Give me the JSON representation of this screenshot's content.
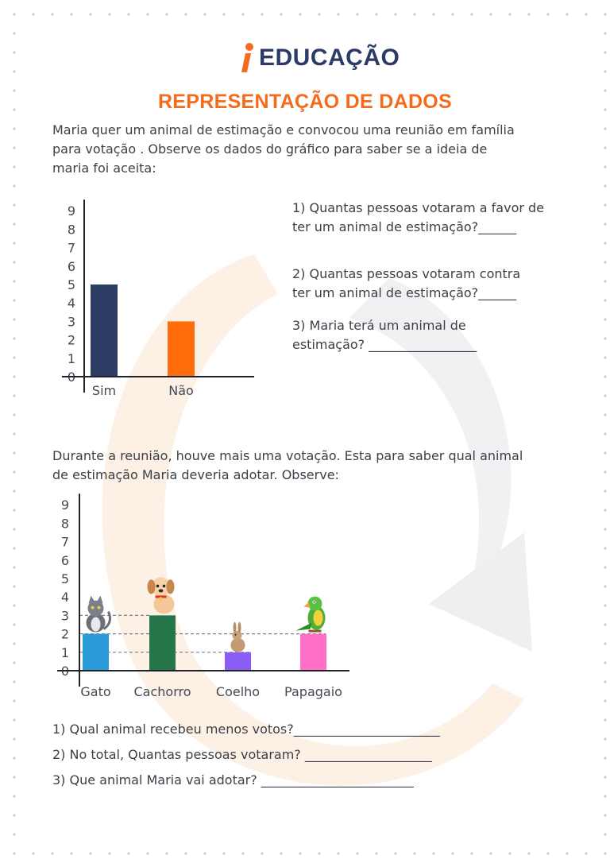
{
  "logo": {
    "text": "EDUCAÇÃO"
  },
  "title": "REPRESENTAÇÃO DE DADOS",
  "intro": "Maria quer um animal de estimação e convocou uma reunião em família\npara votação . Observe os dados do gráfico para saber se a ideia de\nmaria foi aceita:",
  "questions1": [
    "1) Quantas pessoas votaram a favor de\nter um animal de estimação?______",
    "2) Quantas pessoas votaram contra\nter um animal de estimação?______",
    "3) Maria terá um animal de\nestimação? _________________"
  ],
  "second_intro": "Durante a reunião, houve mais uma votação. Esta para saber qual animal\nde estimação Maria deveria adotar. Observe:",
  "questions2": [
    "1) Qual animal recebeu menos votos?_______________________",
    "2) No total,  Quantas pessoas votaram? ____________________",
    "3) Que animal Maria vai adotar? ________________________"
  ],
  "chart_data": [
    {
      "type": "bar",
      "categories": [
        "Sim",
        "Não"
      ],
      "values": [
        5,
        3
      ],
      "colors": [
        "#2e3d63",
        "#ff6d0a"
      ],
      "yticks": [
        0,
        1,
        2,
        3,
        4,
        5,
        6,
        7,
        8,
        9
      ],
      "ylim": [
        0,
        9
      ]
    },
    {
      "type": "bar",
      "categories": [
        "Gato",
        "Cachorro",
        "Coelho",
        "Papagaio"
      ],
      "values": [
        2,
        3,
        1,
        2
      ],
      "colors": [
        "#2a9ad8",
        "#24754a",
        "#8b5cf6",
        "#ff6ec7"
      ],
      "icons": [
        "cat-icon",
        "dog-icon",
        "rabbit-icon",
        "parrot-icon"
      ],
      "yticks": [
        0,
        1,
        2,
        3,
        4,
        5,
        6,
        7,
        8,
        9
      ],
      "ylim": [
        0,
        9
      ]
    }
  ]
}
